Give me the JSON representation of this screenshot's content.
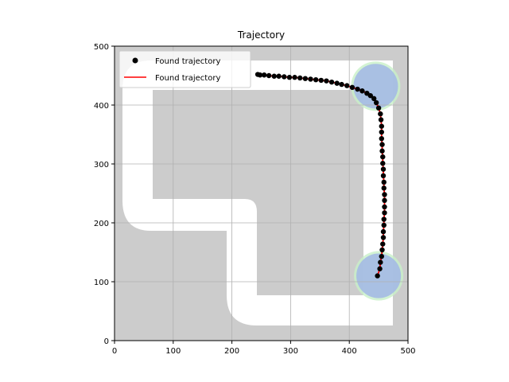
{
  "chart_data": {
    "type": "scatter",
    "title": "Trajectory",
    "xlabel": "",
    "ylabel": "",
    "xlim": [
      0,
      500
    ],
    "ylim": [
      0,
      500
    ],
    "xticks": [
      0,
      100,
      200,
      300,
      400,
      500
    ],
    "yticks": [
      0,
      100,
      200,
      300,
      400,
      500
    ],
    "grid": true,
    "legend_placement": "upper-left",
    "colors": {
      "obstacle": "#cccccc",
      "free_space": "#ffffff",
      "start_region": "#a6bde4",
      "goal_region": "#a6bde4",
      "region_halo": "#c8f0c8",
      "points": "#000000",
      "line": "#ff0000",
      "grid": "#b0b0b0"
    },
    "series": [
      {
        "name": "Found trajectory",
        "kind": "points",
        "marker": "circle"
      },
      {
        "name": "Found trajectory",
        "kind": "line"
      }
    ],
    "x": [
      448,
      452,
      453,
      455,
      456,
      457,
      458,
      458,
      459,
      459,
      460,
      460,
      460,
      460,
      459,
      459,
      458,
      458,
      457,
      457,
      456,
      456,
      455,
      455,
      455,
      454,
      453,
      450,
      446,
      442,
      436,
      430,
      422,
      414,
      405,
      396,
      387,
      379,
      370,
      361,
      352,
      343,
      334,
      325,
      316,
      307,
      298,
      289,
      280,
      272,
      263,
      255,
      248,
      244
    ],
    "y": [
      110,
      122,
      133,
      143,
      154,
      164,
      175,
      185,
      196,
      206,
      217,
      227,
      238,
      248,
      259,
      269,
      280,
      291,
      301,
      312,
      322,
      333,
      343,
      354,
      364,
      375,
      385,
      395,
      404,
      411,
      416,
      420,
      424,
      427,
      430,
      433,
      435,
      437,
      439,
      441,
      442,
      443,
      444,
      445,
      446,
      447,
      447,
      448,
      449,
      449,
      450,
      451,
      451,
      452
    ],
    "regions": [
      {
        "label": "start",
        "center": [
          450,
          110
        ],
        "radius": 38
      },
      {
        "label": "goal",
        "center": [
          445,
          432
        ],
        "radius": 38
      }
    ]
  }
}
